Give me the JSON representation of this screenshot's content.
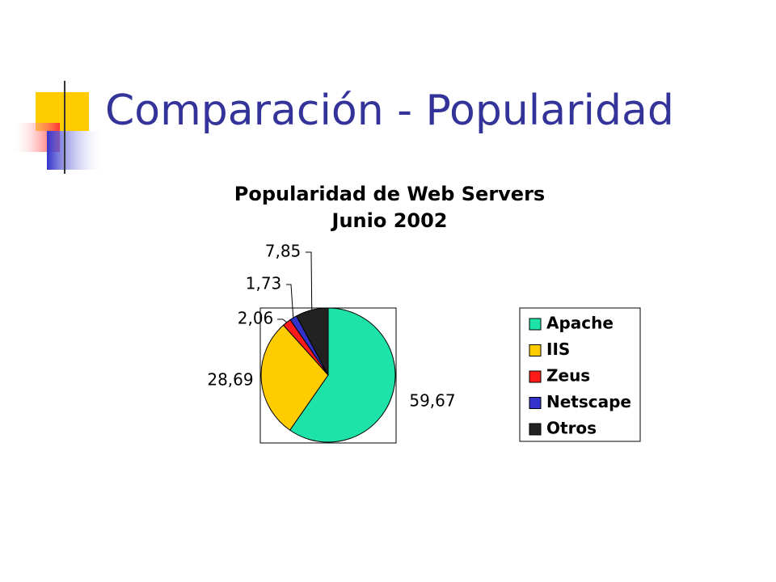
{
  "slide_title": "Comparación - Popularidad",
  "chart_data": {
    "type": "pie",
    "title": "Popularidad de Web Servers",
    "subtitle": "Junio 2002",
    "categories": [
      "Apache",
      "IIS",
      "Zeus",
      "Netscape",
      "Otros"
    ],
    "values": [
      59.67,
      28.69,
      2.06,
      1.73,
      7.85
    ],
    "value_labels": [
      "59,67",
      "28,69",
      "2,06",
      "1,73",
      "7,85"
    ],
    "colors": [
      "#1de3a9",
      "#ffcc00",
      "#ff1a1a",
      "#3333cc",
      "#222222"
    ],
    "legend": "right"
  }
}
